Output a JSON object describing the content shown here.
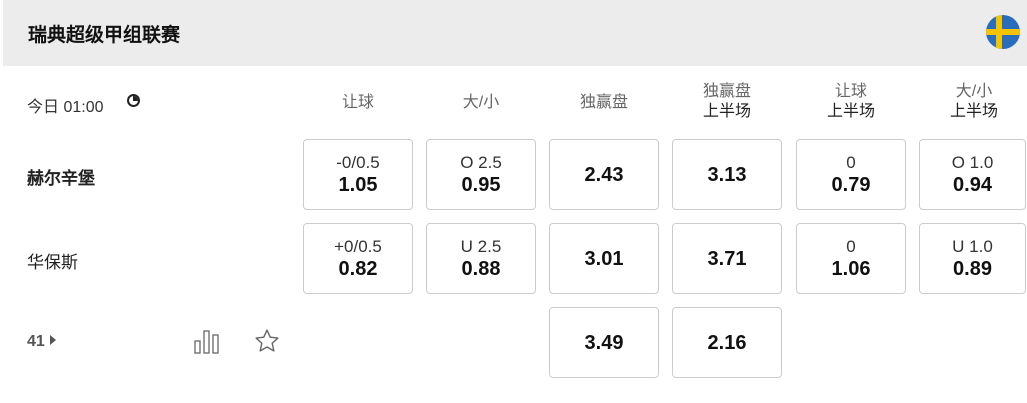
{
  "league": {
    "title": "瑞典超级甲组联赛",
    "flag": "sweden-flag"
  },
  "match": {
    "time": "今日 01:00",
    "home": "赫尔辛堡",
    "away": "华保斯",
    "more_count": "41"
  },
  "columns": [
    {
      "top": "",
      "label": "让球"
    },
    {
      "top": "",
      "label": "大/小"
    },
    {
      "top": "",
      "label": "独赢盘"
    },
    {
      "top": "独赢盘",
      "label": "上半场"
    },
    {
      "top": "让球",
      "label": "上半场"
    },
    {
      "top": "大/小",
      "label": "上半场"
    }
  ],
  "odds": {
    "home": [
      {
        "line": "-0/0.5",
        "odd": "1.05"
      },
      {
        "line": "O 2.5",
        "odd": "0.95"
      },
      {
        "line": "",
        "odd": "2.43"
      },
      {
        "line": "",
        "odd": "3.13"
      },
      {
        "line": "0",
        "odd": "0.79"
      },
      {
        "line": "O 1.0",
        "odd": "0.94"
      }
    ],
    "away": [
      {
        "line": "+0/0.5",
        "odd": "0.82"
      },
      {
        "line": "U 2.5",
        "odd": "0.88"
      },
      {
        "line": "",
        "odd": "3.01"
      },
      {
        "line": "",
        "odd": "3.71"
      },
      {
        "line": "0",
        "odd": "1.06"
      },
      {
        "line": "U 1.0",
        "odd": "0.89"
      }
    ],
    "draw": [
      {
        "odd": "3.49"
      },
      {
        "odd": "2.16"
      }
    ]
  }
}
